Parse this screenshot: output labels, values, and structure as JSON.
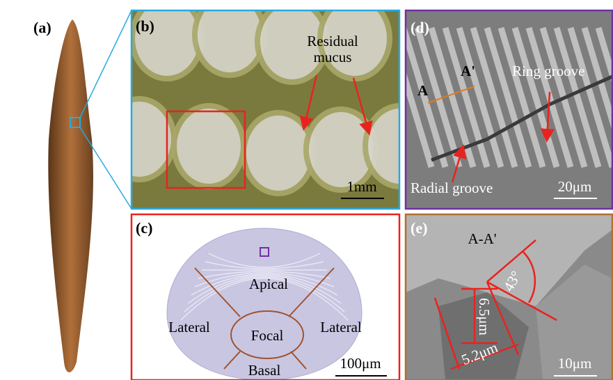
{
  "panels": {
    "a": {
      "label": "(a)"
    },
    "b": {
      "label": "(b)",
      "annotation": [
        "Residual",
        "mucus"
      ],
      "scale_bar": "1mm"
    },
    "c": {
      "label": "(c)",
      "regions": [
        "Apical",
        "Lateral",
        "Lateral",
        "Focal",
        "Basal"
      ],
      "scale_bar": "100μm"
    },
    "d": {
      "label": "(d)",
      "section_marks": [
        "A",
        "A'"
      ],
      "annotations": [
        "Ring groove",
        "Radial groove"
      ],
      "scale_bar": "20μm"
    },
    "e": {
      "label": "(e)",
      "section": "A-A'",
      "dimensions": [
        "6.5μm",
        "5.2μm"
      ],
      "angle": "43°",
      "scale_bar": "10μm"
    }
  }
}
